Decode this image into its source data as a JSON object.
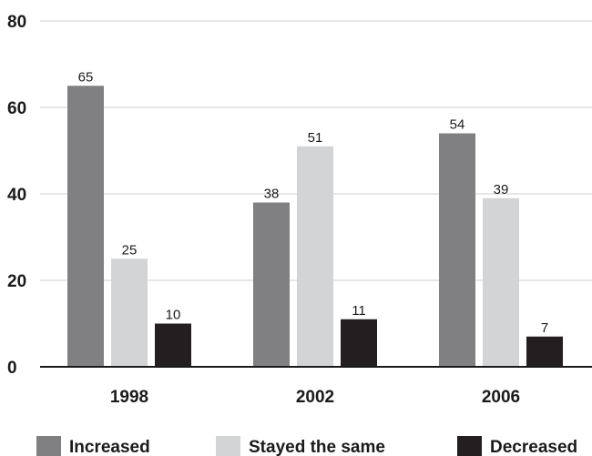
{
  "chart_data": {
    "type": "bar",
    "title": "",
    "xlabel": "",
    "ylabel": "",
    "categories": [
      "1998",
      "2002",
      "2006"
    ],
    "series": [
      {
        "name": "Increased",
        "values": [
          65,
          38,
          54
        ],
        "color": "#808082"
      },
      {
        "name": "Stayed the same",
        "values": [
          25,
          51,
          39
        ],
        "color": "#d3d4d6"
      },
      {
        "name": "Decreased",
        "values": [
          10,
          11,
          7
        ],
        "color": "#231f20"
      }
    ],
    "ylim": [
      0,
      80
    ],
    "yticks": [
      0,
      20,
      40,
      60,
      80
    ],
    "grid": true,
    "legend_position": "bottom"
  }
}
